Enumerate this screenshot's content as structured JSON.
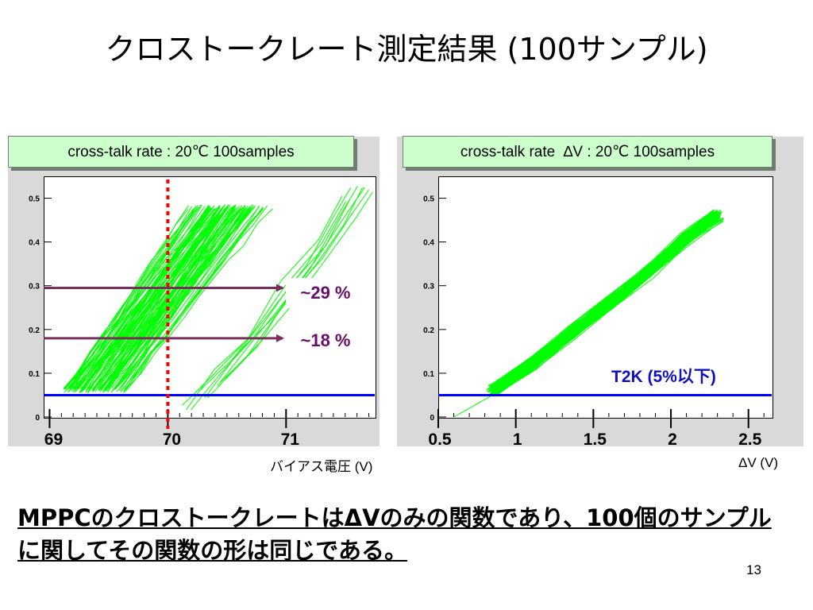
{
  "slide_title": "クロストークレート測定結果 (100サンプル)",
  "left_panel_title": "cross-talk rate : 20℃ 100samples",
  "right_panel_title": "cross-talk rate  ∆V : 20℃ 100samples",
  "left_xlabel": "バイアス電圧 (V)",
  "right_xlabel": "ΔV (V)",
  "annotations": {
    "rate_29": "~29 %",
    "rate_18": "~18 %",
    "t2k": "T2K (5%以下)"
  },
  "bottom_text": "MPPCのクロストークレートはΔVのみの関数であり、100個のサンプルに関してその関数の形は同じである。",
  "page_number": "13",
  "colors": {
    "curves": "#00ff00",
    "threshold_line": "#0000ff",
    "marker_line": "#ff0000",
    "arrow": "#7b2d5c",
    "title_box": "#ccffcc"
  },
  "chart_data": [
    {
      "type": "line",
      "title": "cross-talk rate : 20℃ 100samples",
      "xlabel": "バイアス電圧 (V)",
      "ylabel": "",
      "xlim": [
        68.95,
        71.75
      ],
      "ylim": [
        0,
        0.55
      ],
      "x_tick_labels": [
        "69",
        "70",
        "71"
      ],
      "y_tick_labels": [
        "0",
        "0.1",
        "0.2",
        "0.3",
        "0.4",
        "0.5"
      ],
      "n_samples": 100,
      "main_band": {
        "x_start": 69.1,
        "x_end": 70.25,
        "y_start": 0.06,
        "y_end": 0.48,
        "x_spread": 0.55
      },
      "outlier_curves": [
        {
          "x": [
            70.15,
            70.4,
            70.7,
            71.0,
            71.3,
            71.5
          ],
          "y": [
            0.02,
            0.1,
            0.18,
            0.3,
            0.4,
            0.5
          ]
        },
        {
          "x": [
            70.3,
            70.6,
            70.9,
            71.2,
            71.45,
            71.6
          ],
          "y": [
            0.05,
            0.14,
            0.24,
            0.35,
            0.45,
            0.53
          ]
        },
        {
          "x": [
            70.45,
            70.75,
            71.0,
            71.3,
            71.55,
            71.7
          ],
          "y": [
            0.08,
            0.17,
            0.26,
            0.36,
            0.46,
            0.52
          ]
        }
      ],
      "threshold": {
        "y": 0.05,
        "label": ""
      },
      "marker_x": 70.0,
      "arrows": [
        {
          "y": 0.295,
          "label": "~29 %"
        },
        {
          "y": 0.18,
          "label": "~18 %"
        }
      ]
    },
    {
      "type": "line",
      "title": "cross-talk rate  ∆V : 20℃ 100samples",
      "xlabel": "ΔV (V)",
      "ylabel": "",
      "xlim": [
        0.5,
        2.65
      ],
      "ylim": [
        0,
        0.55
      ],
      "x_tick_labels": [
        "0.5",
        "1",
        "1.5",
        "2",
        "2.5"
      ],
      "y_tick_labels": [
        "0",
        "0.1",
        "0.2",
        "0.3",
        "0.4",
        "0.5"
      ],
      "n_samples": 100,
      "curve_x": [
        0.85,
        1.1,
        1.35,
        1.6,
        1.85,
        2.1,
        2.3
      ],
      "curve_y": [
        0.06,
        0.12,
        0.19,
        0.26,
        0.33,
        0.41,
        0.46
      ],
      "threshold": {
        "y": 0.05,
        "label": "T2K (5%以下)"
      }
    }
  ]
}
